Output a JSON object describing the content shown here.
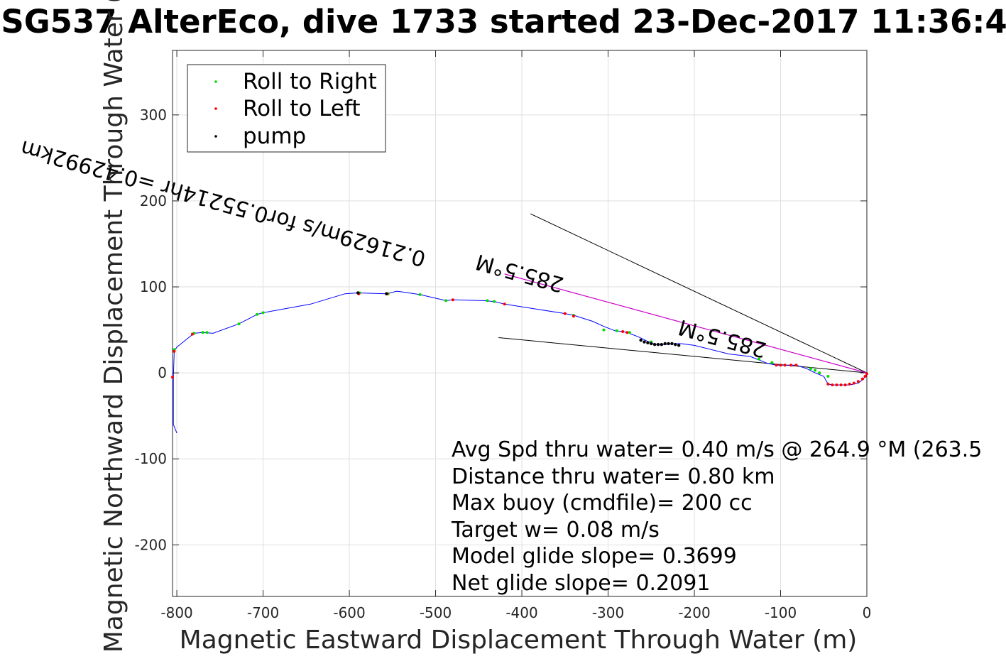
{
  "chart_data": {
    "type": "line",
    "title": "SG537 AlterEco, dive 1733 started 23-Dec-2017 11:36:4",
    "xlabel": "Magnetic Eastward Displacement Through Water (m)",
    "ylabel": "Magnetic Northward Displacement Through Water (",
    "xlim": [
      -805,
      0
    ],
    "ylim": [
      -260,
      375
    ],
    "xticks": [
      -800,
      -700,
      -600,
      -500,
      -400,
      -300,
      -200,
      -100,
      0
    ],
    "yticks": [
      -200,
      -100,
      0,
      100,
      200,
      300
    ],
    "grid": true,
    "legend_position": "top-left",
    "colors": {
      "track": "#0000ff",
      "roll_right": "#00dd00",
      "roll_left": "#ff0000",
      "pump": "#000000",
      "current_line": "#cc00cc"
    },
    "legend": [
      {
        "label": "Roll to Right",
        "color": "#00dd00"
      },
      {
        "label": "Roll to Left",
        "color": "#ff0000"
      },
      {
        "label": "pump",
        "color": "#000000"
      }
    ],
    "track": {
      "x": [
        -800,
        -804,
        -804,
        -803,
        -800,
        -780,
        -770,
        -758,
        -728,
        -707,
        -700,
        -645,
        -605,
        -590,
        -557,
        -545,
        -538,
        -518,
        -488,
        -480,
        -445,
        -432,
        -420,
        -350,
        -340,
        -318,
        -305,
        -292,
        -283,
        -278,
        -265,
        -255,
        -245,
        -235,
        -225,
        -215,
        -200,
        -160,
        -135,
        -125,
        -115,
        -105,
        -95,
        -82,
        -70,
        -60,
        -50,
        -45,
        -40,
        -33,
        -28,
        -20,
        -10,
        -5,
        0
      ],
      "y": [
        -70,
        -60,
        -5,
        25,
        30,
        46,
        47,
        46,
        57,
        68,
        70,
        80,
        92,
        93,
        92,
        95,
        94,
        91,
        84,
        85,
        84,
        83,
        80,
        69,
        67,
        60,
        54,
        49,
        48,
        47,
        42,
        37,
        33,
        33,
        34,
        34,
        32,
        22,
        19,
        15,
        11,
        9,
        9,
        9,
        5,
        0,
        -4,
        -13,
        -14,
        -14,
        -14,
        -14,
        -12,
        -8,
        -2
      ],
      "roll_right_x": [
        -803,
        -780,
        -770,
        -765,
        -728,
        -707,
        -700,
        -588,
        -555,
        -518,
        -488,
        -440,
        -432,
        -340,
        -305,
        -290,
        -275,
        -250,
        -125,
        -110,
        -95,
        -65,
        -60,
        -55,
        -45
      ],
      "roll_right_y": [
        27,
        46,
        47,
        47,
        57,
        68,
        70,
        93,
        92,
        91,
        84,
        84,
        83,
        67,
        50,
        49,
        47,
        36,
        16,
        12,
        9,
        5,
        3,
        0,
        -4
      ],
      "roll_left_x": [
        -805,
        -803,
        -782,
        -589,
        -556,
        -480,
        -420,
        -350,
        -340,
        -283,
        -278,
        -105,
        -100,
        -95,
        -88,
        -82,
        -45,
        -40,
        -35,
        -30,
        -25,
        -20,
        -15,
        -10,
        -5,
        -2,
        0
      ],
      "roll_left_y": [
        -5,
        25,
        45,
        92,
        92,
        85,
        80,
        69,
        66,
        48,
        47,
        9,
        9,
        9,
        9,
        9,
        -13,
        -14,
        -14,
        -14,
        -14,
        -13,
        -12,
        -10,
        -7,
        -4,
        -1
      ],
      "pump_x": [
        -590,
        -557,
        -262,
        -258,
        -254,
        -250,
        -246,
        -242,
        -238,
        -234,
        -230,
        -226,
        -222,
        -218
      ],
      "pump_y": [
        93,
        92,
        38,
        36,
        35,
        34,
        33,
        33,
        33,
        34,
        34,
        34,
        33,
        32
      ],
      "current_line": {
        "x": [
          -420,
          0
        ],
        "y": [
          115,
          0
        ]
      },
      "black_lines": [
        {
          "x": [
            -390,
            0
          ],
          "y": [
            185,
            0
          ]
        },
        {
          "x": [
            -427,
            0
          ],
          "y": [
            41,
            0
          ]
        }
      ]
    },
    "rotated_annotations": [
      {
        "text": "285.5°M",
        "x": -350,
        "y": 110,
        "angle": 195.5
      },
      {
        "text": "0.21629m/s for0.55214hr =0.42992km",
        "x": -510,
        "y": 140,
        "angle": 195.5
      },
      {
        "text": "285.5°M",
        "x": -115,
        "y": 34,
        "angle": 195.5
      }
    ],
    "annotations": [
      "Avg Spd thru water=  0.40 m/s @ 264.9 °M (263.5",
      "Distance thru water=  0.80 km",
      "Max buoy (cmdfile)= 200 cc",
      "Target w= 0.08 m/s",
      "Model glide slope= 0.3699",
      "Net glide slope= 0.2091"
    ]
  }
}
